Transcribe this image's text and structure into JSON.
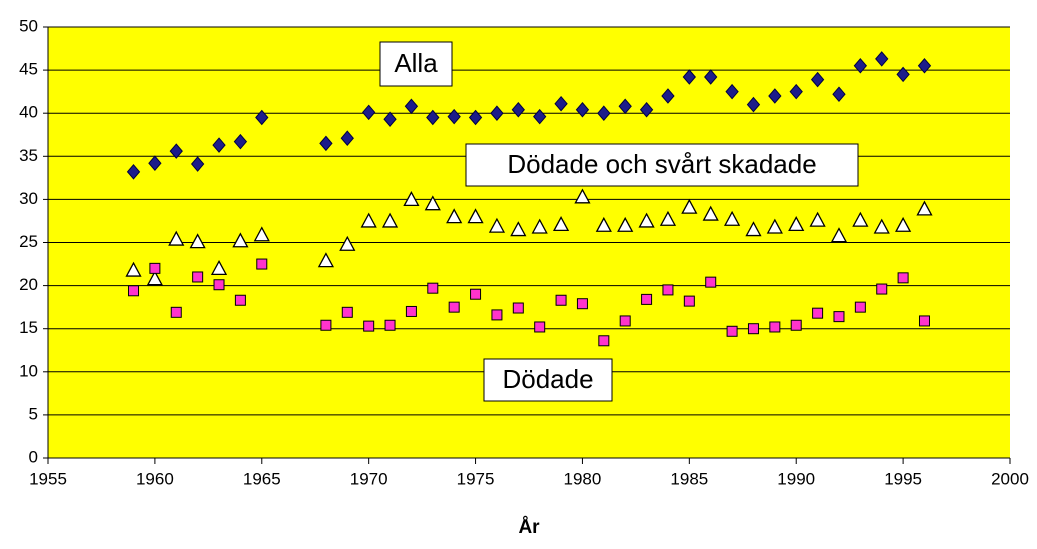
{
  "chart_data": {
    "type": "scatter",
    "x_label": "År",
    "annotations": [
      "Alla",
      "Dödade och svårt skadade",
      "Dödade"
    ],
    "x": [
      1959,
      1960,
      1961,
      1962,
      1963,
      1964,
      1965,
      1968,
      1969,
      1970,
      1971,
      1972,
      1973,
      1974,
      1975,
      1976,
      1977,
      1978,
      1979,
      1980,
      1981,
      1982,
      1983,
      1984,
      1985,
      1986,
      1987,
      1988,
      1989,
      1990,
      1991,
      1992,
      1993,
      1994,
      1995,
      1996
    ],
    "series": [
      {
        "marker": "diamond",
        "color": "#1c1c8a",
        "values": [
          33.2,
          34.2,
          35.6,
          34.1,
          36.3,
          36.7,
          39.5,
          36.5,
          37.1,
          40.1,
          39.3,
          40.8,
          39.5,
          39.6,
          39.5,
          40,
          40.4,
          39.6,
          41.1,
          40.4,
          40,
          40.8,
          40.4,
          42,
          44.2,
          44.2,
          42.5,
          41,
          42,
          42.5,
          43.9,
          42.2,
          45.5,
          46.3,
          44.5,
          45.5
        ]
      },
      {
        "marker": "triangle",
        "color": "#ffffff",
        "values": [
          21.8,
          20.8,
          25.4,
          25.1,
          22,
          25.2,
          25.9,
          22.9,
          24.8,
          27.5,
          27.5,
          30,
          29.5,
          28,
          28,
          26.9,
          26.5,
          26.8,
          27.1,
          30.3,
          27,
          27,
          27.5,
          27.7,
          29.1,
          28.3,
          27.7,
          26.5,
          26.8,
          27.1,
          27.6,
          25.8,
          27.6,
          26.8,
          27,
          28.9
        ]
      },
      {
        "marker": "square",
        "color": "#ff33cc",
        "values": [
          19.4,
          22,
          16.9,
          21,
          20.1,
          18.3,
          22.5,
          15.4,
          16.9,
          15.3,
          15.4,
          17,
          19.7,
          17.5,
          19,
          16.6,
          17.4,
          15.2,
          18.3,
          17.9,
          13.6,
          15.9,
          18.4,
          19.5,
          18.2,
          20.4,
          14.7,
          15,
          15.2,
          15.4,
          16.8,
          16.4,
          17.5,
          19.6,
          20.9,
          15.9
        ]
      }
    ],
    "xlim": [
      1955,
      2000
    ],
    "ylim": [
      0,
      50
    ],
    "xticks": [
      1955,
      1960,
      1965,
      1970,
      1975,
      1980,
      1985,
      1990,
      1995,
      2000
    ],
    "yticks": [
      0,
      5,
      10,
      15,
      20,
      25,
      30,
      35,
      40,
      45,
      50
    ],
    "grid": true,
    "background": "#ffff00"
  }
}
